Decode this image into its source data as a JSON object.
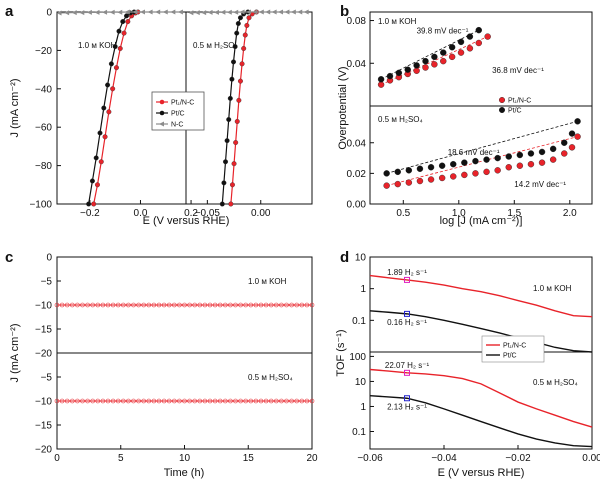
{
  "colors": {
    "pt1": "#e8232a",
    "ptc": "#111111",
    "nc": "#8c8c8c",
    "magenta": "#e020c0",
    "blue": "#2222cc",
    "ann_red": "#e8232a"
  },
  "chart_data": [
    {
      "panel": "a",
      "type": "line",
      "xlabel": "E (V versus RHE)",
      "ylabel": "J (mA cm⁻²)",
      "ylim": [
        -100,
        0
      ],
      "left": {
        "xlim": [
          -0.33,
          0.18
        ],
        "xticks": [
          -0.2,
          0.0,
          0.2
        ],
        "xticklabels": [
          "−0.2",
          "0.0",
          "0.2"
        ],
        "label": "1.0 м KOH",
        "series": [
          {
            "name": "Pt₁/N-C",
            "color": "pt1",
            "x": [
              -0.185,
              -0.17,
              -0.155,
              -0.14,
              -0.125,
              -0.11,
              -0.095,
              -0.08,
              -0.065,
              -0.05,
              -0.035,
              -0.02,
              -0.01
            ],
            "y": [
              -100,
              -90,
              -78,
              -65,
              -52,
              -40,
              -29,
              -19,
              -11,
              -5,
              -2,
              -0.5,
              0
            ]
          },
          {
            "name": "Pt/C",
            "color": "ptc",
            "x": [
              -0.205,
              -0.19,
              -0.175,
              -0.16,
              -0.145,
              -0.13,
              -0.115,
              -0.1,
              -0.085,
              -0.07,
              -0.055,
              -0.04,
              -0.025
            ],
            "y": [
              -100,
              -88,
              -76,
              -63,
              -50,
              -38,
              -27,
              -18,
              -10,
              -5,
              -2,
              -0.5,
              0
            ]
          },
          {
            "name": "N-C",
            "color": "nc",
            "x": [
              -0.32,
              -0.29,
              -0.26,
              -0.23,
              -0.2,
              -0.17,
              -0.14,
              -0.11,
              -0.08,
              -0.05,
              -0.02,
              0.01,
              0.04,
              0.07,
              0.1,
              0.13,
              0.16
            ],
            "y": [
              -0.5,
              -0.4,
              -0.3,
              -0.3,
              -0.2,
              -0.2,
              -0.1,
              -0.1,
              -0.1,
              0,
              0,
              0,
              0,
              0,
              0,
              0,
              0
            ]
          }
        ]
      },
      "right": {
        "xlim": [
          -0.07,
          0.048
        ],
        "xticks": [
          -0.05,
          0.0
        ],
        "xticklabels": [
          "−0.05",
          "0.00"
        ],
        "label": "0.5 м H₂SO₄",
        "series": [
          {
            "name": "Pt₁/N-C",
            "color": "pt1",
            "x": [
              -0.028,
              -0.0265,
              -0.025,
              -0.0235,
              -0.022,
              -0.0205,
              -0.019,
              -0.0175,
              -0.016,
              -0.0145,
              -0.013,
              -0.011,
              -0.008,
              -0.004
            ],
            "y": [
              -100,
              -90,
              -79,
              -68,
              -57,
              -46,
              -36,
              -27,
              -19,
              -12,
              -7,
              -3,
              -1,
              0
            ]
          },
          {
            "name": "Pt/C",
            "color": "ptc",
            "x": [
              -0.036,
              -0.0345,
              -0.033,
              -0.0315,
              -0.03,
              -0.0285,
              -0.027,
              -0.0255,
              -0.024,
              -0.0225,
              -0.021,
              -0.019,
              -0.016,
              -0.012
            ],
            "y": [
              -100,
              -89,
              -78,
              -67,
              -56,
              -45,
              -35,
              -26,
              -18,
              -11,
              -6,
              -3,
              -1,
              0
            ]
          },
          {
            "name": "N-C",
            "color": "nc",
            "x": [
              -0.065,
              -0.059,
              -0.053,
              -0.047,
              -0.041,
              -0.035,
              -0.029,
              -0.023,
              -0.017,
              -0.011,
              -0.005,
              0.001,
              0.007,
              0.013,
              0.019,
              0.025,
              0.031,
              0.037,
              0.043
            ],
            "y": [
              -0.4,
              -0.3,
              -0.3,
              -0.2,
              -0.2,
              -0.1,
              -0.1,
              -0.1,
              0,
              0,
              0,
              0,
              0,
              0,
              0,
              0,
              0,
              0,
              0
            ]
          }
        ]
      },
      "legend": [
        {
          "name": "Pt₁/N-C",
          "color": "pt1"
        },
        {
          "name": "Pt/C",
          "color": "ptc"
        },
        {
          "name": "N-C",
          "color": "nc"
        }
      ],
      "legend_placement": "center-left"
    },
    {
      "panel": "b",
      "type": "scatter",
      "xlabel": "log [J (mA cm⁻²)]",
      "ylabel": "Overpotential (V)",
      "xlim": [
        0.2,
        2.2
      ],
      "xticks": [
        0.5,
        1.0,
        1.5,
        2.0
      ],
      "xticklabels": [
        "0.5",
        "1.0",
        "1.5",
        "2.0"
      ],
      "top": {
        "label": "1.0 м KOH",
        "ylim": [
          0.0,
          0.088
        ],
        "yticks": [
          0.04,
          0.08
        ],
        "yticklabels": [
          "0.04",
          "0.08"
        ],
        "series": [
          {
            "name": "Pt₁/N-C",
            "color": "pt1",
            "x": [
              0.3,
              0.38,
              0.46,
              0.54,
              0.62,
              0.7,
              0.78,
              0.86,
              0.94,
              1.02,
              1.1,
              1.18,
              1.26
            ],
            "y": [
              0.02,
              0.024,
              0.027,
              0.03,
              0.033,
              0.036,
              0.039,
              0.042,
              0.046,
              0.05,
              0.054,
              0.059,
              0.065
            ]
          },
          {
            "name": "Pt/C",
            "color": "ptc",
            "x": [
              0.3,
              0.38,
              0.46,
              0.54,
              0.62,
              0.7,
              0.78,
              0.86,
              0.94,
              1.02,
              1.1,
              1.18
            ],
            "y": [
              0.025,
              0.028,
              0.031,
              0.034,
              0.038,
              0.042,
              0.046,
              0.05,
              0.055,
              0.06,
              0.065,
              0.071
            ]
          }
        ],
        "annotations": [
          {
            "text": "39.8 mV dec⁻¹",
            "x": 0.62,
            "y": 0.068,
            "color": "ptc"
          },
          {
            "text": "36.8 mV dec⁻¹",
            "x": 1.3,
            "y": 0.031,
            "color": "ann_red"
          }
        ]
      },
      "bottom": {
        "label": "0.5 м H₂SO₄",
        "ylim": [
          0.0,
          0.064
        ],
        "yticks": [
          0.0,
          0.02,
          0.04
        ],
        "yticklabels": [
          "0.00",
          "0.02",
          "0.04"
        ],
        "series": [
          {
            "name": "Pt₁/N-C",
            "color": "pt1",
            "x": [
              0.35,
              0.45,
              0.55,
              0.65,
              0.75,
              0.85,
              0.95,
              1.05,
              1.15,
              1.25,
              1.35,
              1.45,
              1.55,
              1.65,
              1.75,
              1.85,
              1.95,
              2.02,
              2.07
            ],
            "y": [
              0.012,
              0.013,
              0.014,
              0.015,
              0.016,
              0.017,
              0.018,
              0.019,
              0.02,
              0.021,
              0.022,
              0.024,
              0.025,
              0.026,
              0.027,
              0.029,
              0.033,
              0.037,
              0.044
            ]
          },
          {
            "name": "Pt/C",
            "color": "ptc",
            "x": [
              0.35,
              0.45,
              0.55,
              0.65,
              0.75,
              0.85,
              0.95,
              1.05,
              1.15,
              1.25,
              1.35,
              1.45,
              1.55,
              1.65,
              1.75,
              1.85,
              1.95,
              2.02,
              2.07
            ],
            "y": [
              0.02,
              0.021,
              0.022,
              0.023,
              0.024,
              0.025,
              0.026,
              0.027,
              0.028,
              0.029,
              0.03,
              0.031,
              0.032,
              0.033,
              0.034,
              0.036,
              0.04,
              0.046,
              0.054
            ]
          }
        ],
        "annotations": [
          {
            "text": "18.6 mV dec⁻¹",
            "x": 0.9,
            "y": 0.032,
            "color": "ptc"
          },
          {
            "text": "14.2 mV dec⁻¹",
            "x": 1.5,
            "y": 0.011,
            "color": "ann_red"
          }
        ]
      },
      "legend": [
        {
          "name": "Pt₁/N-C",
          "color": "pt1"
        },
        {
          "name": "Pt/C",
          "color": "ptc"
        }
      ],
      "legend_placement": "center-right"
    },
    {
      "panel": "c",
      "type": "line",
      "xlabel": "Time (h)",
      "ylabel": "J (mA cm⁻²)",
      "xlim": [
        0,
        20
      ],
      "xticks": [
        0,
        5,
        10,
        15,
        20
      ],
      "ylim": [
        -20,
        0
      ],
      "yticks": [
        0,
        -5,
        -10,
        -15,
        -20
      ],
      "yticklabels": [
        "0",
        "−5",
        "−10",
        "−15",
        "−20"
      ],
      "top": {
        "label": "1.0 м KOH",
        "value": -10
      },
      "bottom": {
        "label": "0.5 м H₂SO₄",
        "value": -10
      },
      "series": [
        {
          "name": "Pt₁/N-C",
          "color": "pt1"
        }
      ]
    },
    {
      "panel": "d",
      "type": "line",
      "xlabel": "E (V versus RHE)",
      "ylabel": "TOF (s⁻¹)",
      "xlim": [
        -0.06,
        0.0
      ],
      "xticks": [
        -0.06,
        -0.04,
        -0.02,
        0.0
      ],
      "xticklabels": [
        "−0.06",
        "−0.04",
        "−0.02",
        "0.00"
      ],
      "top": {
        "label": "1.0 м KOH",
        "ylim": [
          0.01,
          10
        ],
        "yticks": [
          0.01,
          0.1,
          1,
          10
        ],
        "yticklabels": [
          "",
          "0.1",
          "1",
          "10"
        ],
        "series": [
          {
            "name": "Pt₁/N-C",
            "color": "pt1",
            "x": [
              -0.06,
              -0.055,
              -0.05,
              -0.045,
              -0.04,
              -0.035,
              -0.03,
              -0.025,
              -0.02,
              -0.015,
              -0.01,
              -0.005,
              0.0
            ],
            "y": [
              2.6,
              2.2,
              1.89,
              1.6,
              1.3,
              1.0,
              0.8,
              0.6,
              0.42,
              0.3,
              0.2,
              0.14,
              0.13
            ]
          },
          {
            "name": "Pt/C",
            "color": "ptc",
            "x": [
              -0.06,
              -0.055,
              -0.05,
              -0.045,
              -0.04,
              -0.035,
              -0.03,
              -0.025,
              -0.02,
              -0.015,
              -0.01,
              -0.005,
              0.0
            ],
            "y": [
              0.2,
              0.18,
              0.16,
              0.13,
              0.1,
              0.075,
              0.055,
              0.04,
              0.028,
              0.02,
              0.014,
              0.011,
              0.01
            ]
          }
        ],
        "annotations": [
          {
            "text": "1.89 H₂ s⁻¹",
            "x": -0.05,
            "y": 1.89,
            "color": "magenta"
          },
          {
            "text": "0.16 H₂ s⁻¹",
            "x": -0.05,
            "y": 0.16,
            "color": "blue"
          }
        ]
      },
      "bottom": {
        "label": "0.5 м H₂SO₄",
        "ylim": [
          0.02,
          150
        ],
        "yticks": [
          0.1,
          1,
          10,
          100
        ],
        "yticklabels": [
          "0.1",
          "1",
          "10",
          "100"
        ],
        "series": [
          {
            "name": "Pt₁/N-C",
            "color": "pt1",
            "x": [
              -0.06,
              -0.055,
              -0.05,
              -0.045,
              -0.04,
              -0.035,
              -0.03,
              -0.025,
              -0.02,
              -0.015,
              -0.01,
              -0.005,
              0.0
            ],
            "y": [
              30,
              26,
              22.07,
              20,
              17,
              13,
              8,
              3.5,
              1.5,
              0.8,
              0.45,
              0.25,
              0.15
            ]
          },
          {
            "name": "Pt/C",
            "color": "ptc",
            "x": [
              -0.06,
              -0.055,
              -0.05,
              -0.045,
              -0.04,
              -0.035,
              -0.03,
              -0.025,
              -0.02,
              -0.015,
              -0.01,
              -0.005,
              0.0
            ],
            "y": [
              2.7,
              2.4,
              2.13,
              1.4,
              0.8,
              0.45,
              0.25,
              0.14,
              0.08,
              0.05,
              0.035,
              0.027,
              0.025
            ]
          }
        ],
        "annotations": [
          {
            "text": "22.07 H₂ s⁻¹",
            "x": -0.05,
            "y": 22.07,
            "color": "magenta"
          },
          {
            "text": "2.13 H₂ s⁻¹",
            "x": -0.05,
            "y": 2.13,
            "color": "blue"
          }
        ]
      },
      "legend": [
        {
          "name": "Pt₁/N-C",
          "color": "pt1"
        },
        {
          "name": "Pt/C",
          "color": "ptc"
        }
      ],
      "legend_placement": "center-right"
    }
  ]
}
